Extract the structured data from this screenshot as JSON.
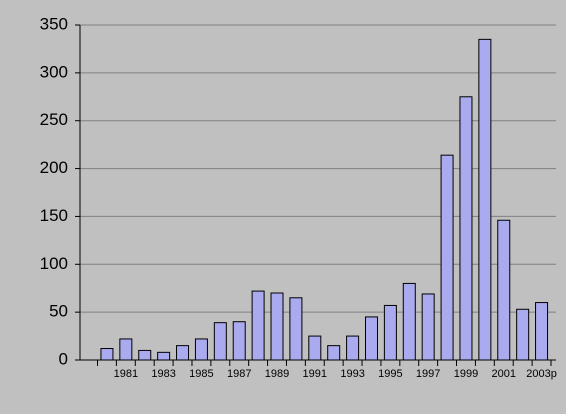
{
  "chart_data": {
    "type": "bar",
    "categories": [
      null,
      "1981",
      null,
      "1983",
      null,
      "1985",
      null,
      "1987",
      null,
      "1989",
      null,
      "1991",
      null,
      "1993",
      null,
      "1995",
      null,
      "1997",
      null,
      "1999",
      null,
      "2001",
      null,
      "2003p"
    ],
    "values": [
      12,
      22,
      10,
      8,
      15,
      22,
      39,
      40,
      72,
      70,
      65,
      25,
      15,
      25,
      45,
      57,
      80,
      69,
      214,
      275,
      335,
      146,
      53,
      60
    ],
    "color": "#aaaaee",
    "ylim": [
      0,
      350
    ],
    "yticks": [
      0,
      50,
      100,
      150,
      200,
      250,
      300,
      350
    ],
    "grid": true
  }
}
